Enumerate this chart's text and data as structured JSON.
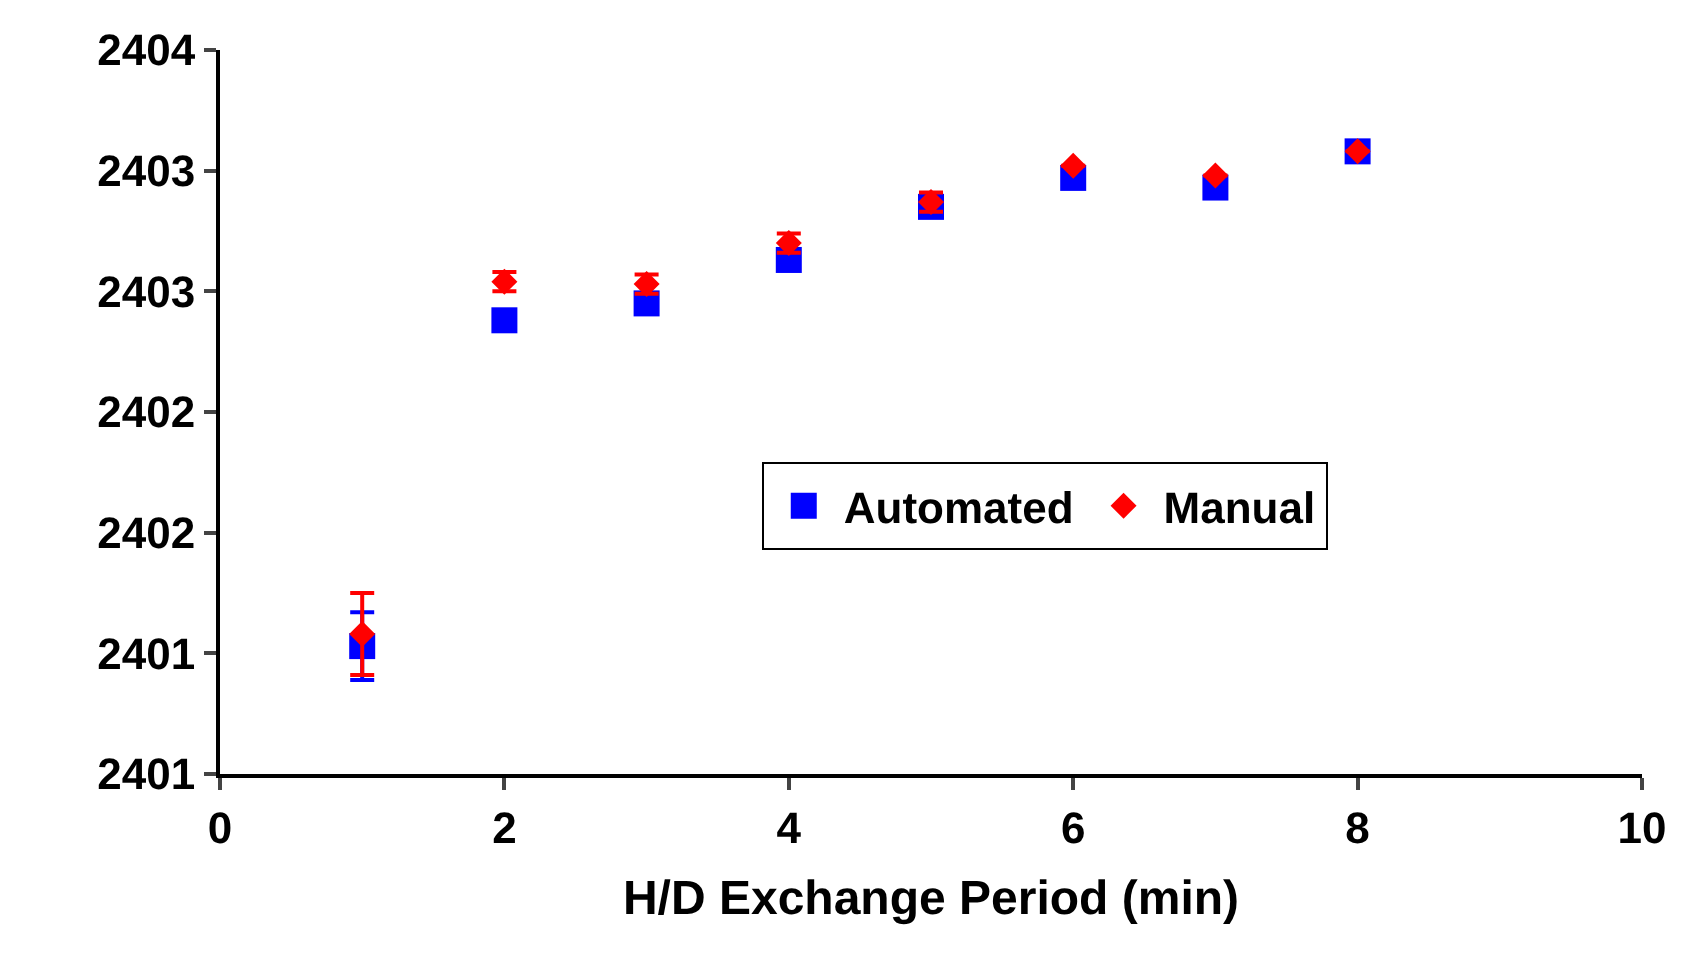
{
  "chart_data": {
    "type": "scatter",
    "xlabel": "H/D Exchange Period (min)",
    "x": [
      1,
      2,
      3,
      4,
      5,
      6,
      7,
      8
    ],
    "series": [
      {
        "name": "Automated",
        "color": "#0000ff",
        "marker": "square",
        "values": [
          2401.03,
          2402.38,
          2402.45,
          2402.63,
          2402.85,
          2402.97,
          2402.93,
          2403.08
        ],
        "errors": [
          0.14,
          null,
          null,
          null,
          null,
          null,
          null,
          null
        ]
      },
      {
        "name": "Manual",
        "color": "#ff0000",
        "marker": "diamond",
        "values": [
          2401.08,
          2402.54,
          2402.53,
          2402.7,
          2402.87,
          2403.02,
          2402.98,
          2403.08
        ],
        "errors": [
          0.17,
          0.04,
          0.04,
          0.04,
          0.04,
          null,
          null,
          null
        ]
      }
    ],
    "xlim": [
      0,
      10
    ],
    "xticks": [
      0,
      2,
      4,
      6,
      8,
      10
    ],
    "ylim": [
      2400.5,
      2403.5
    ],
    "yticks": [
      {
        "value": 2400.5,
        "label": "2401"
      },
      {
        "value": 2401,
        "label": "2401"
      },
      {
        "value": 2401.5,
        "label": "2402"
      },
      {
        "value": 2402,
        "label": "2402"
      },
      {
        "value": 2402.5,
        "label": "2403"
      },
      {
        "value": 2403,
        "label": "2403"
      },
      {
        "value": 2403.5,
        "label": "2404"
      }
    ],
    "legend": "center"
  }
}
